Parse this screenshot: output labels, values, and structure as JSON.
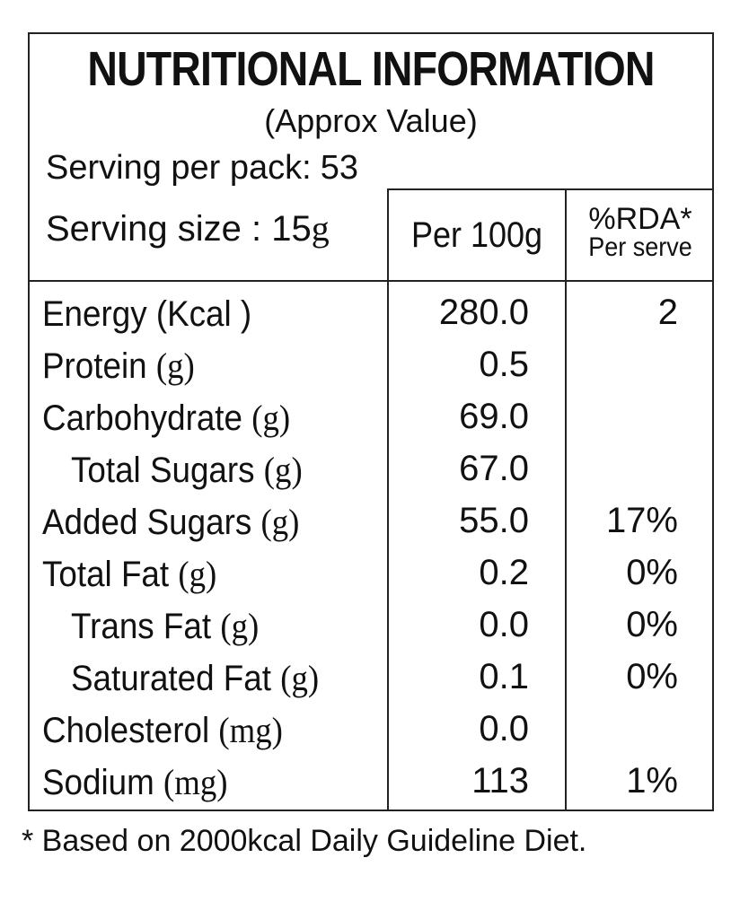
{
  "label": {
    "title": "NUTRITIONAL INFORMATION",
    "subtitle": "(Approx Value)",
    "serving_per_pack_label": "Serving per pack:",
    "serving_per_pack_value": "53",
    "serving_size_label": "Serving size : 15",
    "serving_size_unit": "g",
    "col_per100": "Per 100g",
    "col_rda": "%RDA*",
    "col_rda_sub": "Per serve"
  },
  "rows": [
    {
      "name": "Energy (Kcal )",
      "unit": "",
      "indent": false,
      "per100": "280.0",
      "rda": "2"
    },
    {
      "name": "Protein ",
      "unit": "(g)",
      "indent": false,
      "per100": "0.5",
      "rda": ""
    },
    {
      "name": "Carbohydrate ",
      "unit": "(g)",
      "indent": false,
      "per100": "69.0",
      "rda": ""
    },
    {
      "name": "Total Sugars ",
      "unit": "(g)",
      "indent": true,
      "per100": "67.0",
      "rda": ""
    },
    {
      "name": "Added Sugars ",
      "unit": "(g)",
      "indent": false,
      "per100": "55.0",
      "rda": "17%"
    },
    {
      "name": "Total Fat ",
      "unit": "(g)",
      "indent": false,
      "per100": "0.2",
      "rda": "0%"
    },
    {
      "name": "Trans Fat ",
      "unit": "(g)",
      "indent": true,
      "per100": "0.0",
      "rda": "0%"
    },
    {
      "name": "Saturated Fat ",
      "unit": "(g)",
      "indent": true,
      "per100": "0.1",
      "rda": "0%"
    },
    {
      "name": "Cholesterol ",
      "unit": "(mg)",
      "indent": false,
      "per100": "0.0",
      "rda": ""
    },
    {
      "name": "Sodium ",
      "unit": "(mg)",
      "indent": false,
      "per100": "113",
      "rda": "1%"
    }
  ],
  "footnote": "* Based on 2000kcal Daily Guideline Diet."
}
